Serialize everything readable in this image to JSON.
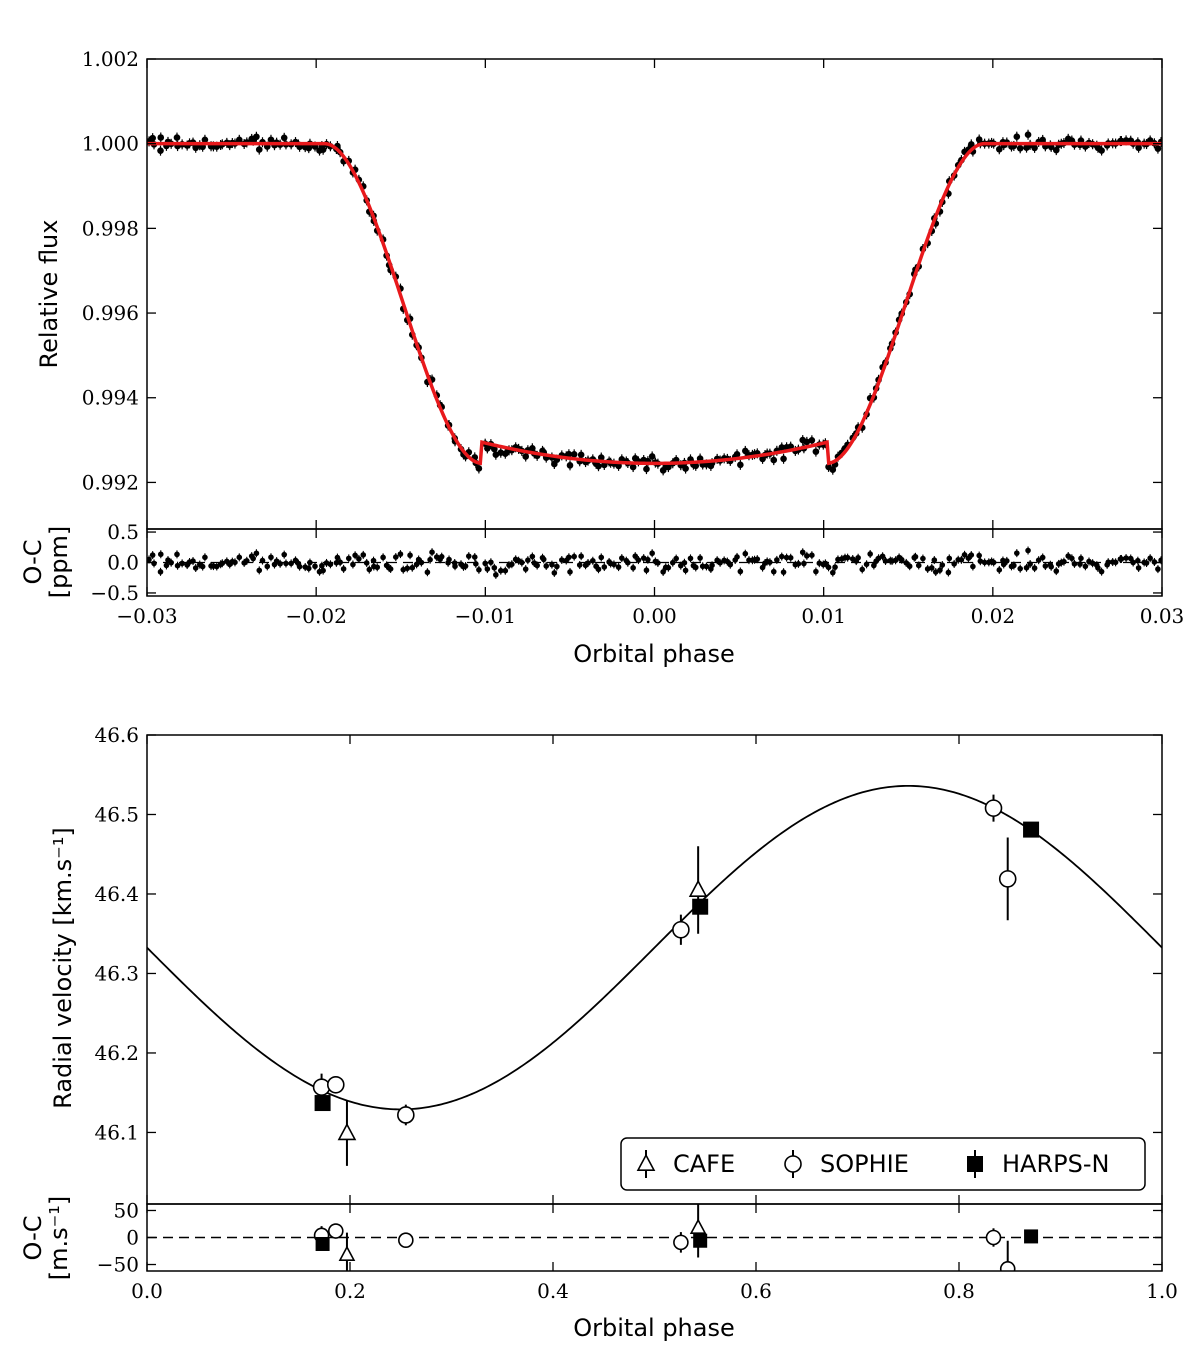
{
  "chart_data": [
    {
      "type": "scatter",
      "panel": "transit",
      "xlabel": "Orbital phase",
      "ylabel": "Relative flux",
      "xlim": [
        -0.03,
        0.03
      ],
      "ylim": [
        0.9909,
        1.002
      ],
      "x_ticks": [
        "−0.03",
        "−0.02",
        "−0.01",
        "0.00",
        "0.01",
        "0.02",
        "0.03"
      ],
      "y_ticks": [
        "0.992",
        "0.994",
        "0.996",
        "0.998",
        "1.000",
        "1.002"
      ],
      "model_color": "#e8191c",
      "point_color": "#000000",
      "model": {
        "depth": 0.00755,
        "t14_half": 0.0195,
        "t23_half": 0.0102,
        "limb": 0.0005
      },
      "points": {
        "count": 300,
        "scatter": 0.00014
      },
      "residuals": {
        "ylabel_line1": "O-C",
        "ylabel_line2": "[ppm]",
        "ylim": [
          -0.55,
          0.55
        ],
        "y_ticks": [
          "0.5",
          "0.0",
          "−0.5"
        ],
        "scatter": 0.13
      }
    },
    {
      "type": "scatter",
      "panel": "radial-velocity",
      "xlabel": "Orbital phase",
      "ylabel": "Radial velocity [km.s⁻¹]",
      "xlim": [
        0.0,
        1.0
      ],
      "ylim": [
        46.01,
        46.6
      ],
      "x_ticks": [
        "0.0",
        "0.2",
        "0.4",
        "0.6",
        "0.8",
        "1.0"
      ],
      "y_ticks": [
        "46.1",
        "46.2",
        "46.3",
        "46.4",
        "46.5",
        "46.6"
      ],
      "model": {
        "gamma": 46.3325,
        "K": 0.2035,
        "phase_of_min": 0.25
      },
      "series": [
        {
          "name": "CAFE",
          "marker": "triangle",
          "points": [
            {
              "x": 0.197,
              "y": 46.099,
              "err": 0.041,
              "res": -32
            },
            {
              "x": 0.543,
              "y": 46.405,
              "err": 0.055,
              "res": 18
            }
          ]
        },
        {
          "name": "SOPHIE",
          "marker": "circle",
          "points": [
            {
              "x": 0.172,
              "y": 46.157,
              "err": 0.017,
              "res": 4
            },
            {
              "x": 0.186,
              "y": 46.16,
              "err": 0.01,
              "res": 12
            },
            {
              "x": 0.255,
              "y": 46.122,
              "err": 0.013,
              "res": -5
            },
            {
              "x": 0.526,
              "y": 46.355,
              "err": 0.019,
              "res": -9
            },
            {
              "x": 0.834,
              "y": 46.508,
              "err": 0.017,
              "res": 0
            },
            {
              "x": 0.848,
              "y": 46.419,
              "err": 0.052,
              "res": -58
            }
          ]
        },
        {
          "name": "HARPS-N",
          "marker": "square",
          "points": [
            {
              "x": 0.173,
              "y": 46.137,
              "err": 0.004,
              "res": -12
            },
            {
              "x": 0.545,
              "y": 46.384,
              "err": 0.006,
              "res": -6
            },
            {
              "x": 0.871,
              "y": 46.481,
              "err": 0.004,
              "res": 2
            }
          ]
        }
      ],
      "legend_position": "lower-right",
      "residuals": {
        "ylabel_line1": "O-C",
        "ylabel_line2": "[m.s⁻¹]",
        "ylim": [
          -62,
          62
        ],
        "y_ticks": [
          "50",
          "0",
          "−50"
        ]
      }
    }
  ]
}
